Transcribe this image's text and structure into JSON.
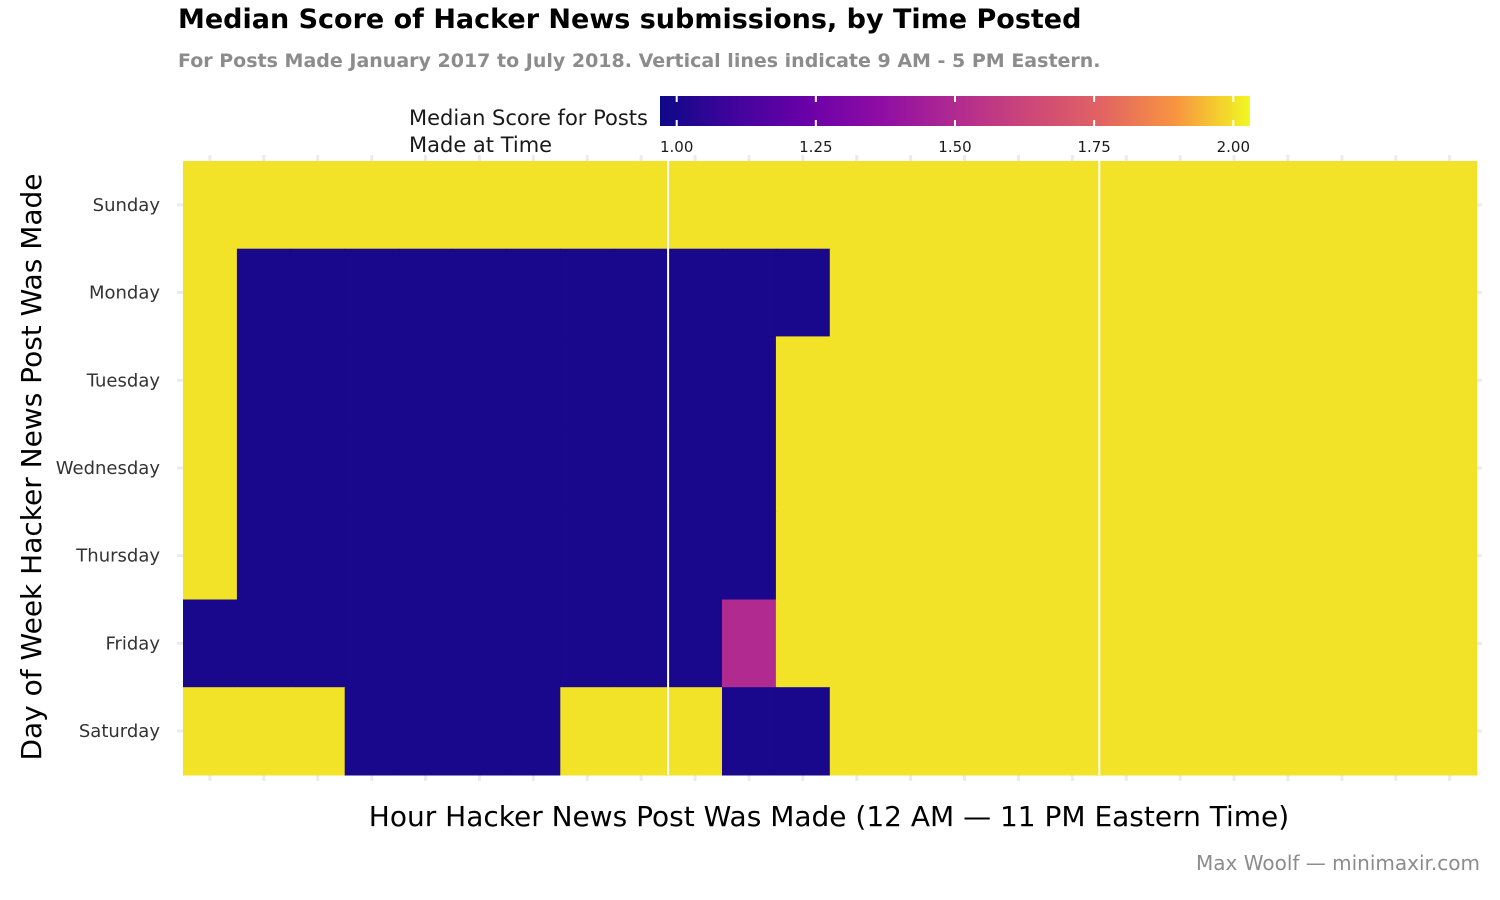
{
  "chart_data": {
    "type": "heatmap",
    "title": "Median Score of Hacker News submissions, by Time Posted",
    "subtitle": "For Posts Made January 2017 to July 2018. Vertical lines indicate 9 AM - 5 PM Eastern.",
    "xlabel": "Hour Hacker News Post Was Made (12 AM — 11 PM Eastern Time)",
    "ylabel": "Day of Week Hacker News Post Was Made",
    "caption": "Max Woolf — minimaxir.com",
    "legend": {
      "title_lines": [
        "Median Score for Posts",
        "Made at Time"
      ],
      "ticks": [
        "1.00",
        "1.25",
        "1.50",
        "1.75",
        "2.00"
      ],
      "tick_values": [
        1.0,
        1.25,
        1.5,
        1.75,
        2.0
      ],
      "range": [
        0.97,
        2.03
      ],
      "placement": "top"
    },
    "x_hours": [
      0,
      1,
      2,
      3,
      4,
      5,
      6,
      7,
      8,
      9,
      10,
      11,
      12,
      13,
      14,
      15,
      16,
      17,
      18,
      19,
      20,
      21,
      22,
      23
    ],
    "vertical_lines_hours": [
      9,
      17
    ],
    "days": [
      "Sunday",
      "Monday",
      "Tuesday",
      "Wednesday",
      "Thursday",
      "Friday",
      "Saturday"
    ],
    "values": [
      [
        2,
        2,
        2,
        2,
        2,
        2,
        2,
        2,
        2,
        2,
        2,
        2,
        2,
        2,
        2,
        2,
        2,
        2,
        2,
        2,
        2,
        2,
        2,
        2
      ],
      [
        2,
        1,
        1,
        1,
        1,
        1,
        1,
        1,
        1,
        1,
        1,
        1,
        2,
        2,
        2,
        2,
        2,
        2,
        2,
        2,
        2,
        2,
        2,
        2
      ],
      [
        2,
        1,
        1,
        1,
        1,
        1,
        1,
        1,
        1,
        1,
        1,
        2,
        2,
        2,
        2,
        2,
        2,
        2,
        2,
        2,
        2,
        2,
        2,
        2
      ],
      [
        2,
        1,
        1,
        1,
        1,
        1,
        1,
        1,
        1,
        1,
        1,
        2,
        2,
        2,
        2,
        2,
        2,
        2,
        2,
        2,
        2,
        2,
        2,
        2
      ],
      [
        2,
        1,
        1,
        1,
        1,
        1,
        1,
        1,
        1,
        1,
        1,
        2,
        2,
        2,
        2,
        2,
        2,
        2,
        2,
        2,
        2,
        2,
        2,
        2
      ],
      [
        1,
        1,
        1,
        1,
        1,
        1,
        1,
        1,
        1,
        1,
        1.5,
        2,
        2,
        2,
        2,
        2,
        2,
        2,
        2,
        2,
        2,
        2,
        2,
        2
      ],
      [
        2,
        2,
        2,
        1,
        1,
        1,
        1,
        2,
        2,
        2,
        1,
        1,
        2,
        2,
        2,
        2,
        2,
        2,
        2,
        2,
        2,
        2,
        2,
        2
      ]
    ],
    "colors": {
      "low": "#0d0887",
      "high": "#f0f921",
      "guide_line": "#ffffff",
      "grid": "#ebebeb"
    }
  }
}
